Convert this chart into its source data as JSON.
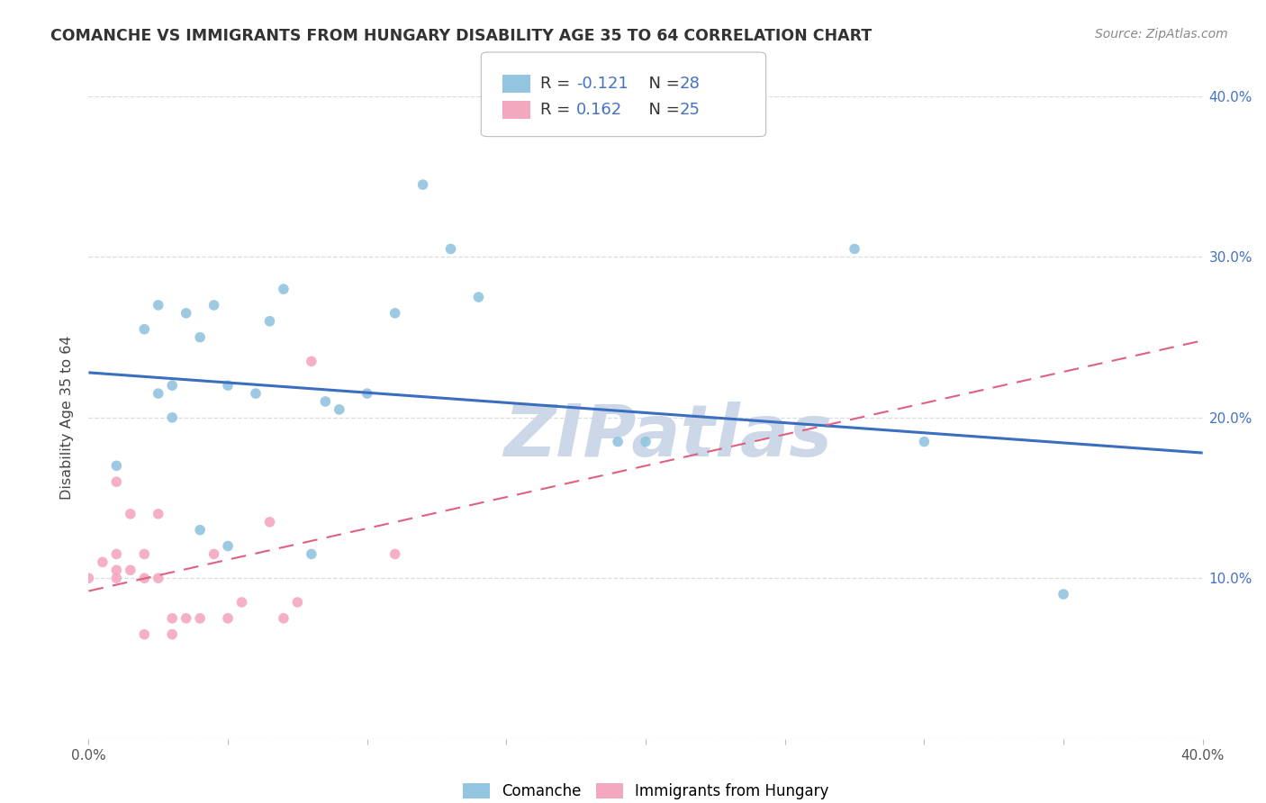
{
  "title": "COMANCHE VS IMMIGRANTS FROM HUNGARY DISABILITY AGE 35 TO 64 CORRELATION CHART",
  "source": "Source: ZipAtlas.com",
  "ylabel": "Disability Age 35 to 64",
  "xlim": [
    0.0,
    0.4
  ],
  "ylim": [
    0.0,
    0.4
  ],
  "legend_blue_r": "-0.121",
  "legend_blue_n": "28",
  "legend_pink_r": "0.162",
  "legend_pink_n": "25",
  "legend_label1": "Comanche",
  "legend_label2": "Immigrants from Hungary",
  "blue_scatter_x": [
    0.01,
    0.02,
    0.025,
    0.03,
    0.03,
    0.035,
    0.04,
    0.04,
    0.045,
    0.05,
    0.05,
    0.06,
    0.065,
    0.07,
    0.08,
    0.085,
    0.09,
    0.1,
    0.11,
    0.12,
    0.13,
    0.14,
    0.19,
    0.2,
    0.275,
    0.3,
    0.35,
    0.025
  ],
  "blue_scatter_y": [
    0.17,
    0.255,
    0.27,
    0.2,
    0.22,
    0.265,
    0.25,
    0.13,
    0.27,
    0.22,
    0.12,
    0.215,
    0.26,
    0.28,
    0.115,
    0.21,
    0.205,
    0.215,
    0.265,
    0.345,
    0.305,
    0.275,
    0.185,
    0.185,
    0.305,
    0.185,
    0.09,
    0.215
  ],
  "pink_scatter_x": [
    0.0,
    0.005,
    0.01,
    0.01,
    0.01,
    0.01,
    0.015,
    0.015,
    0.02,
    0.02,
    0.02,
    0.025,
    0.025,
    0.03,
    0.03,
    0.035,
    0.04,
    0.045,
    0.05,
    0.055,
    0.065,
    0.07,
    0.075,
    0.08,
    0.11
  ],
  "pink_scatter_y": [
    0.1,
    0.11,
    0.1,
    0.105,
    0.115,
    0.16,
    0.105,
    0.14,
    0.065,
    0.1,
    0.115,
    0.1,
    0.14,
    0.065,
    0.075,
    0.075,
    0.075,
    0.115,
    0.075,
    0.085,
    0.135,
    0.075,
    0.085,
    0.235,
    0.115
  ],
  "blue_line_x": [
    0.0,
    0.4
  ],
  "blue_line_y": [
    0.228,
    0.178
  ],
  "pink_line_x": [
    0.0,
    0.4
  ],
  "pink_line_y": [
    0.092,
    0.248
  ],
  "background_color": "#ffffff",
  "scatter_size": 70,
  "blue_color": "#93c4e0",
  "pink_color": "#f4a8bf",
  "blue_line_color": "#3a6fbf",
  "pink_line_color": "#e06080",
  "grid_color": "#dddddd",
  "watermark": "ZIPatlas",
  "watermark_color": "#ccd8e8",
  "tick_color": "#4472c4",
  "title_color": "#333333",
  "source_color": "#888888"
}
